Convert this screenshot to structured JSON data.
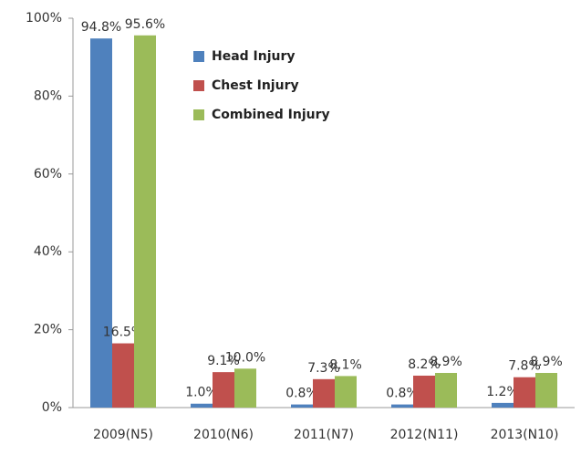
{
  "chart_data": {
    "type": "bar",
    "categories": [
      "2009(N5)",
      "2010(N6)",
      "2011(N7)",
      "2012(N11)",
      "2013(N10)"
    ],
    "series": [
      {
        "name": "Head Injury",
        "color": "#4f81bd",
        "values": [
          94.8,
          1.0,
          0.8,
          0.8,
          1.2
        ],
        "value_labels": [
          "94.8%",
          "1.0%",
          "0.8%",
          "0.8%",
          "1.2%"
        ]
      },
      {
        "name": "Chest Injury",
        "color": "#c0504d",
        "values": [
          16.5,
          9.1,
          7.3,
          8.2,
          7.8
        ],
        "value_labels": [
          "16.5%",
          "9.1%",
          "7.3%",
          "8.2%",
          "7.8%"
        ]
      },
      {
        "name": "Combined  Injury",
        "color": "#9bbb59",
        "values": [
          95.6,
          10.0,
          8.1,
          8.9,
          8.9
        ],
        "value_labels": [
          "95.6%",
          "10.0%",
          "8.1%",
          "8.9%",
          "8.9%"
        ]
      }
    ],
    "ylim": [
      0,
      100
    ],
    "yticks": [
      {
        "value": 0,
        "label": "0%"
      },
      {
        "value": 20,
        "label": "20%"
      },
      {
        "value": 40,
        "label": "40%"
      },
      {
        "value": 60,
        "label": "60%"
      },
      {
        "value": 80,
        "label": "80%"
      },
      {
        "value": 100,
        "label": "100%"
      }
    ],
    "legend": "upper center"
  }
}
